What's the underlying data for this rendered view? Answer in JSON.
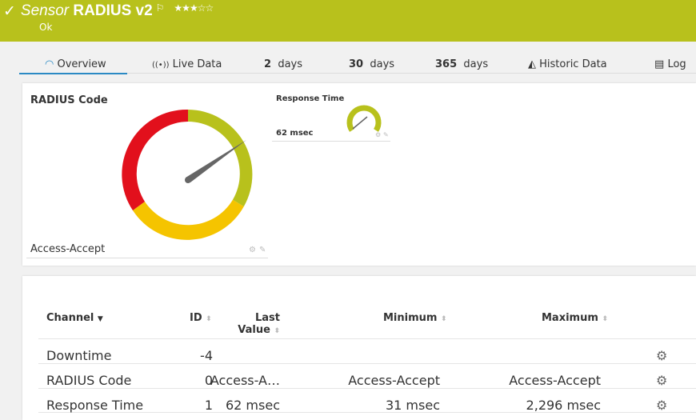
{
  "header": {
    "title_prefix": "Sensor",
    "title": "RADIUS v2",
    "status": "Ok",
    "priority_stars": "★★★☆☆",
    "priority": 3,
    "color": "#b8c11c"
  },
  "tabs": [
    {
      "label": "Overview",
      "icon": "gauge-icon"
    },
    {
      "label": "Live Data",
      "icon": "broadcast-icon"
    },
    {
      "num": "2",
      "label": "days"
    },
    {
      "num": "30",
      "label": "days"
    },
    {
      "num": "365",
      "label": "days"
    },
    {
      "label": "Historic Data",
      "icon": "area-chart-icon"
    },
    {
      "label": "Log",
      "icon": "list-icon"
    }
  ],
  "gauges": {
    "main": {
      "title": "RADIUS Code",
      "value": "Access-Accept"
    },
    "small": {
      "title": "Response Time",
      "value": "62 msec"
    }
  },
  "table": {
    "headers": {
      "channel": "Channel",
      "id": "ID",
      "last": "Last",
      "last2": "Value",
      "min": "Minimum",
      "max": "Maximum"
    },
    "rows": [
      {
        "channel": "Downtime",
        "id": "-4",
        "last": "",
        "min": "",
        "max": ""
      },
      {
        "channel": "RADIUS Code",
        "id": "0",
        "last": "Access-A…",
        "min": "Access-Accept",
        "max": "Access-Accept"
      },
      {
        "channel": "Response Time",
        "id": "1",
        "last": "62 msec",
        "min": "31 msec",
        "max": "2,296 msec"
      }
    ]
  }
}
